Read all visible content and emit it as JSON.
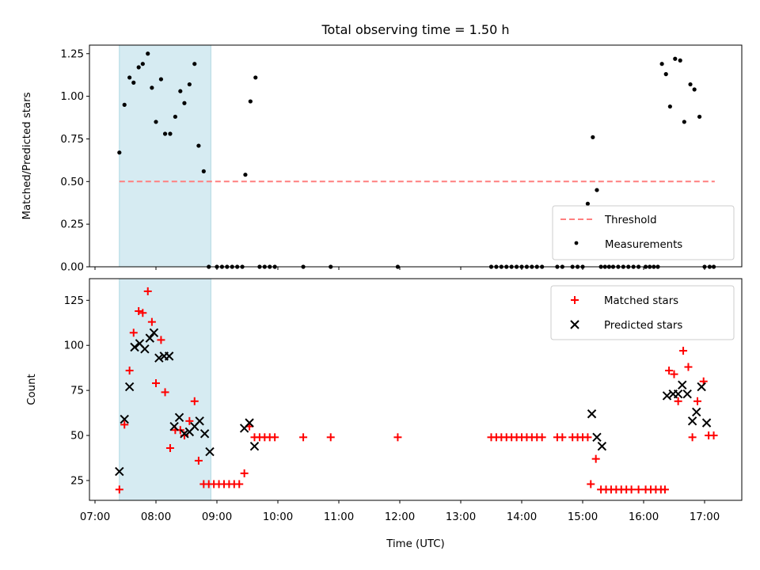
{
  "title": "Total observing time = 1.50 h",
  "chart_data": [
    {
      "type": "scatter",
      "panel": "top",
      "ylabel": "Matched/Predicted stars",
      "xlabel": "",
      "ylim": [
        0.0,
        1.3
      ],
      "yticks": [
        0.0,
        0.25,
        0.5,
        0.75,
        1.0,
        1.25
      ],
      "ytick_labels": [
        "0.00",
        "0.25",
        "0.50",
        "0.75",
        "1.00",
        "1.25"
      ],
      "xlim": [
        "07:00",
        "17:40"
      ],
      "highlight_span": [
        "07:24",
        "08:54"
      ],
      "grid": false,
      "legend_position": "lower right",
      "series": [
        {
          "name": "Threshold",
          "kind": "line-dashed",
          "color": "#ff7f7f",
          "x": [
            "07:24",
            "17:10"
          ],
          "y": [
            0.5,
            0.5
          ]
        },
        {
          "name": "Measurements",
          "kind": "dot",
          "color": "#000000",
          "x": [
            "07:24",
            "07:29",
            "07:34",
            "07:38",
            "07:43",
            "07:47",
            "07:52",
            "07:56",
            "08:00",
            "08:05",
            "08:09",
            "08:14",
            "08:19",
            "08:24",
            "08:28",
            "08:33",
            "08:38",
            "08:42",
            "08:47",
            "08:52",
            "09:00",
            "09:05",
            "09:10",
            "09:15",
            "09:20",
            "09:25",
            "09:28",
            "09:33",
            "09:38",
            "09:42",
            "09:47",
            "09:52",
            "09:57",
            "10:25",
            "10:52",
            "11:58",
            "13:30",
            "13:35",
            "13:40",
            "13:45",
            "13:50",
            "13:55",
            "14:00",
            "14:05",
            "14:10",
            "14:15",
            "14:20",
            "14:35",
            "14:40",
            "14:50",
            "14:55",
            "15:00",
            "15:05",
            "15:10",
            "15:14",
            "15:18",
            "15:22",
            "15:26",
            "15:30",
            "15:35",
            "15:40",
            "15:45",
            "15:50",
            "15:55",
            "16:02",
            "16:06",
            "16:10",
            "16:14",
            "16:18",
            "16:22",
            "16:26",
            "16:31",
            "16:36",
            "16:40",
            "16:46",
            "16:50",
            "16:55",
            "17:00",
            "17:05",
            "17:09"
          ],
          "y": [
            0.67,
            0.95,
            1.11,
            1.08,
            1.17,
            1.19,
            1.25,
            1.05,
            0.85,
            1.1,
            0.78,
            0.78,
            0.88,
            1.03,
            0.96,
            1.07,
            1.19,
            0.71,
            0.56,
            0.0,
            0.0,
            0.0,
            0.0,
            0.0,
            0.0,
            0.0,
            0.54,
            0.97,
            1.11,
            0.0,
            0.0,
            0.0,
            0.0,
            0.0,
            0.0,
            0.0,
            0.0,
            0.0,
            0.0,
            0.0,
            0.0,
            0.0,
            0.0,
            0.0,
            0.0,
            0.0,
            0.0,
            0.0,
            0.0,
            0.0,
            0.0,
            0.0,
            0.37,
            0.76,
            0.45,
            0.0,
            0.0,
            0.0,
            0.0,
            0.0,
            0.0,
            0.0,
            0.0,
            0.0,
            0.0,
            0.0,
            0.0,
            0.0,
            1.19,
            1.13,
            0.94,
            1.22,
            1.21,
            0.85,
            1.07,
            1.04,
            0.88,
            0.0,
            0.0,
            0.0
          ]
        }
      ]
    },
    {
      "type": "scatter",
      "panel": "bottom",
      "ylabel": "Count",
      "xlabel": "Time (UTC)",
      "ylim": [
        14,
        137
      ],
      "yticks": [
        25,
        50,
        75,
        100,
        125
      ],
      "ytick_labels": [
        "25",
        "50",
        "75",
        "100",
        "125"
      ],
      "xlim": [
        "07:00",
        "17:40"
      ],
      "xticks": [
        "07:00",
        "08:00",
        "09:00",
        "10:00",
        "11:00",
        "12:00",
        "13:00",
        "14:00",
        "15:00",
        "16:00",
        "17:00"
      ],
      "highlight_span": [
        "07:24",
        "08:54"
      ],
      "grid": false,
      "legend_position": "upper right",
      "series": [
        {
          "name": "Matched stars",
          "kind": "plus",
          "color": "#ff0000",
          "x": [
            "07:24",
            "07:29",
            "07:34",
            "07:38",
            "07:43",
            "07:47",
            "07:52",
            "07:56",
            "08:00",
            "08:05",
            "08:09",
            "08:14",
            "08:19",
            "08:24",
            "08:28",
            "08:33",
            "08:38",
            "08:42",
            "08:47",
            "08:52",
            "08:57",
            "09:02",
            "09:07",
            "09:12",
            "09:17",
            "09:22",
            "09:27",
            "09:32",
            "09:37",
            "09:42",
            "09:47",
            "09:52",
            "09:57",
            "10:25",
            "10:52",
            "11:58",
            "13:30",
            "13:35",
            "13:40",
            "13:45",
            "13:50",
            "13:55",
            "14:00",
            "14:05",
            "14:10",
            "14:15",
            "14:20",
            "14:35",
            "14:40",
            "14:50",
            "14:55",
            "15:00",
            "15:05",
            "15:08",
            "15:13",
            "15:18",
            "15:23",
            "15:28",
            "15:33",
            "15:38",
            "15:43",
            "15:48",
            "15:55",
            "16:02",
            "16:07",
            "16:12",
            "16:17",
            "16:21",
            "16:25",
            "16:30",
            "16:34",
            "16:39",
            "16:44",
            "16:48",
            "16:53",
            "16:59",
            "17:04",
            "17:09"
          ],
          "y": [
            20,
            56,
            86,
            107,
            119,
            118,
            130,
            113,
            79,
            103,
            74,
            43,
            53,
            53,
            50,
            58,
            69,
            36,
            23,
            23,
            23,
            23,
            23,
            23,
            23,
            23,
            29,
            55,
            49,
            49,
            49,
            49,
            49,
            49,
            49,
            49,
            49,
            49,
            49,
            49,
            49,
            49,
            49,
            49,
            49,
            49,
            49,
            49,
            49,
            49,
            49,
            49,
            49,
            23,
            37,
            20,
            20,
            20,
            20,
            20,
            20,
            20,
            20,
            20,
            20,
            20,
            20,
            20,
            86,
            84,
            69,
            97,
            88,
            49,
            69,
            80,
            50,
            50
          ]
        },
        {
          "name": "Predicted stars",
          "kind": "x",
          "color": "#000000",
          "x": [
            "07:24",
            "07:29",
            "07:34",
            "07:39",
            "07:44",
            "07:49",
            "07:54",
            "07:58",
            "08:03",
            "08:08",
            "08:13",
            "08:18",
            "08:23",
            "08:28",
            "08:33",
            "08:38",
            "08:43",
            "08:48",
            "08:53",
            "09:27",
            "09:32",
            "09:37",
            "15:09",
            "15:14",
            "15:19",
            "16:23",
            "16:29",
            "16:34",
            "16:38",
            "16:43",
            "16:48",
            "16:52",
            "16:57",
            "17:02"
          ],
          "y": [
            30,
            59,
            77,
            99,
            101,
            98,
            104,
            107,
            93,
            94,
            94,
            55,
            60,
            51,
            52,
            55,
            58,
            51,
            41,
            54,
            57,
            44,
            62,
            49,
            44,
            72,
            73,
            73,
            78,
            73,
            58,
            63,
            77,
            57
          ]
        }
      ]
    }
  ]
}
